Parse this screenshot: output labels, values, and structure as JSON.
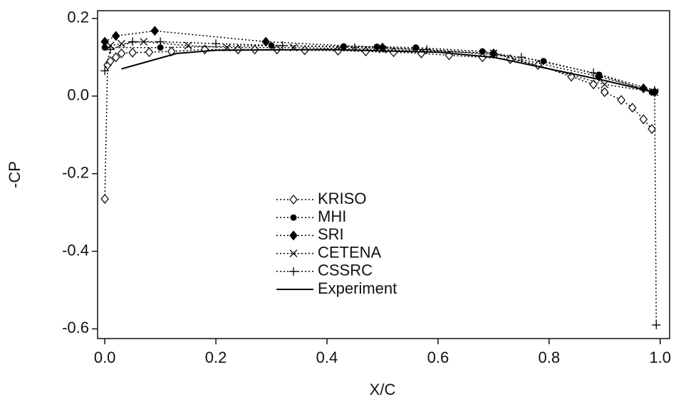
{
  "chart_data": {
    "type": "line",
    "xlabel": "X/C",
    "ylabel": "-CP",
    "xlim": [
      -0.013,
      1.017
    ],
    "ylim": [
      -0.625,
      0.22
    ],
    "xticks": [
      {
        "value": 0,
        "label": "0.0"
      },
      0.2,
      0.4,
      0.6,
      0.8,
      {
        "value": 1,
        "label": "1.0"
      }
    ],
    "yticks": [
      0.2,
      {
        "value": 0,
        "label": "0.0"
      },
      -0.2,
      -0.4,
      -0.6
    ],
    "grid": false,
    "legend": "lower center",
    "series": [
      {
        "name": "KRISO",
        "color": "#000000",
        "marker": "open-diamond",
        "line": "dotted",
        "x": [
          0.0,
          0.005,
          0.01,
          0.02,
          0.03,
          0.05,
          0.08,
          0.12,
          0.18,
          0.24,
          0.27,
          0.31,
          0.36,
          0.42,
          0.47,
          0.52,
          0.57,
          0.62,
          0.68,
          0.73,
          0.78,
          0.84,
          0.88,
          0.9,
          0.93,
          0.95,
          0.97,
          0.985
        ],
        "values": [
          -0.265,
          0.08,
          0.09,
          0.1,
          0.11,
          0.112,
          0.113,
          0.115,
          0.12,
          0.12,
          0.12,
          0.12,
          0.118,
          0.117,
          0.115,
          0.113,
          0.11,
          0.105,
          0.1,
          0.095,
          0.08,
          0.05,
          0.03,
          0.01,
          -0.01,
          -0.03,
          -0.06,
          -0.085
        ]
      },
      {
        "name": "MHI",
        "color": "#000000",
        "marker": "circle",
        "line": "dotted",
        "x": [
          0.0,
          0.1,
          0.3,
          0.43,
          0.49,
          0.56,
          0.68,
          0.79,
          0.89,
          0.985
        ],
        "values": [
          0.125,
          0.125,
          0.13,
          0.128,
          0.127,
          0.125,
          0.115,
          0.09,
          0.055,
          0.01
        ]
      },
      {
        "name": "SRI",
        "color": "#000000",
        "marker": "diamond",
        "line": "dotted",
        "x": [
          0.0,
          0.02,
          0.09,
          0.29,
          0.5,
          0.7,
          0.89,
          0.97,
          0.99
        ],
        "values": [
          0.14,
          0.155,
          0.168,
          0.14,
          0.125,
          0.11,
          0.05,
          0.02,
          0.01
        ]
      },
      {
        "name": "CETENA",
        "color": "#000000",
        "marker": "x",
        "line": "dotted",
        "x": [
          0.01,
          0.03,
          0.07,
          0.15,
          0.22,
          0.34,
          0.5,
          0.7,
          0.9,
          0.99
        ],
        "values": [
          0.13,
          0.135,
          0.14,
          0.13,
          0.125,
          0.125,
          0.12,
          0.11,
          0.03,
          0.01
        ]
      },
      {
        "name": "CSSRC",
        "color": "#000000",
        "marker": "plus",
        "line": "dotted",
        "x": [
          0.0,
          0.01,
          0.05,
          0.1,
          0.2,
          0.32,
          0.45,
          0.58,
          0.75,
          0.88,
          0.99,
          0.993
        ],
        "values": [
          0.065,
          0.12,
          0.14,
          0.14,
          0.135,
          0.13,
          0.125,
          0.12,
          0.1,
          0.06,
          0.015,
          -0.59
        ]
      },
      {
        "name": "Experiment",
        "color": "#000000",
        "marker": "none",
        "line": "solid",
        "x": [
          0.03,
          0.08,
          0.13,
          0.2,
          0.4,
          0.6,
          0.7,
          0.8,
          0.9,
          0.99
        ],
        "values": [
          0.07,
          0.09,
          0.11,
          0.118,
          0.12,
          0.113,
          0.1,
          0.07,
          0.04,
          0.01
        ]
      }
    ]
  }
}
